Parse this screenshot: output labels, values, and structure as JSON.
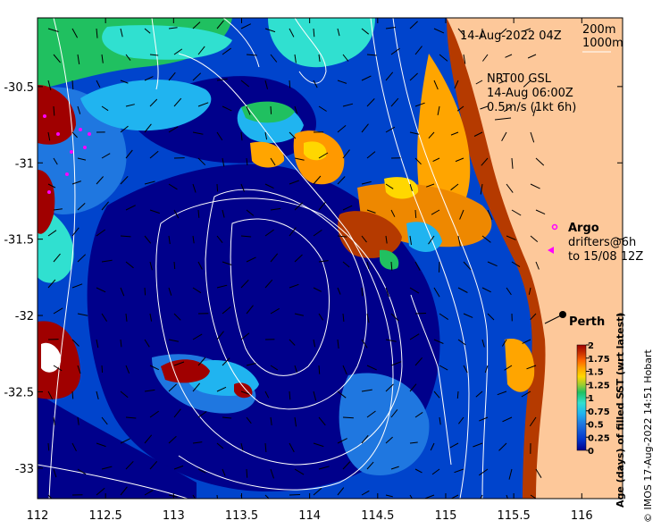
{
  "header": {
    "date_label": "14-Aug-2022 04Z",
    "isobath_200": "200m",
    "isobath_1000": "1000m"
  },
  "current_info": {
    "line1": "NRT00 GSL",
    "line2": "14-Aug 06:00Z",
    "line3": "0.5m/s (1kt 6h)"
  },
  "legend": {
    "argo": "Argo",
    "drifters1": "drifters@6h",
    "drifters2": "to 15/08 12Z"
  },
  "city": {
    "name": "Perth",
    "lon": 115.86,
    "lat": -31.95
  },
  "axes": {
    "x_ticks": [
      "112",
      "112.5",
      "113",
      "113.5",
      "114",
      "114.5",
      "115",
      "115.5",
      "116"
    ],
    "x_values": [
      112,
      112.5,
      113,
      113.5,
      114,
      114.5,
      115,
      115.5,
      116
    ],
    "y_ticks": [
      "-30.5",
      "-31",
      "-31.5",
      "-32",
      "-32.5",
      "-33"
    ],
    "y_values": [
      -30.5,
      -31,
      -31.5,
      -32,
      -32.5,
      -33
    ],
    "lon_range": [
      112,
      116.3
    ],
    "lat_range": [
      -33.2,
      -30.05
    ]
  },
  "colorbar": {
    "title": "Age (days) of filled SST (wrt latest)",
    "ticks": [
      "2",
      "1.75",
      "1.5",
      "1.25",
      "1",
      "0.75",
      "0.5",
      "0.25",
      "0"
    ],
    "range": [
      0,
      2
    ],
    "colors": [
      "#00008b",
      "#0033cc",
      "#1f77e0",
      "#20b4f0",
      "#30e0d0",
      "#20c060",
      "#9acd32",
      "#ffd700",
      "#ffa500",
      "#ff6600",
      "#cc3300",
      "#a00000"
    ]
  },
  "credit": "© IMOS 17-Aug-2022 14:51 Hobart",
  "colors": {
    "land": "#fdc89a",
    "coast": "#a04000",
    "deep": "#00008b",
    "blue": "#0044cc",
    "mid": "#1f77e0",
    "cyan": "#20b4f0",
    "teal": "#30e0d0",
    "green": "#20c060",
    "yellow": "#ffd700",
    "orange": "#ffa500",
    "orange2": "#ff6600",
    "red": "#a00000",
    "argo": "#ff00ff"
  }
}
